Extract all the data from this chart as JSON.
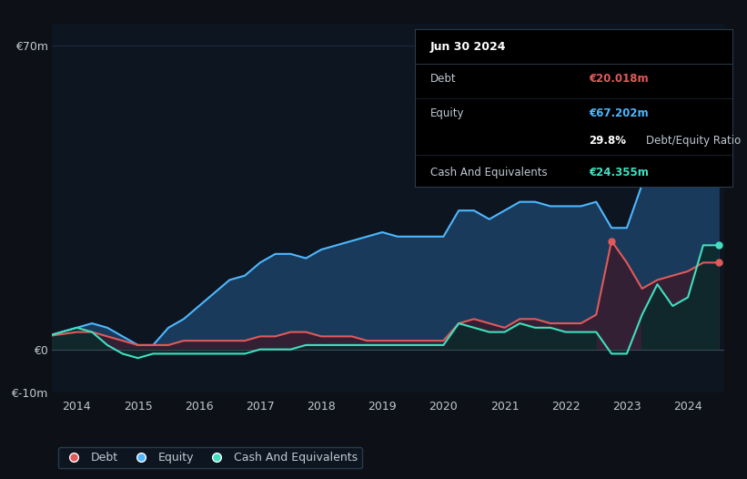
{
  "background_color": "#0d1117",
  "plot_bg_color": "#0d1520",
  "grid_color": "#1e2d40",
  "text_color": "#c0c8d0",
  "title_color": "#ffffff",
  "ylim": [
    -10,
    75
  ],
  "debt_color": "#e05a5a",
  "equity_color": "#4db8ff",
  "cash_color": "#40e0c0",
  "equity_fill_color": "#1a3a5c",
  "debt_fill_color": "#3a1a2a",
  "legend_bg": "#0d1520",
  "legend_border": "#2a3a4a",
  "tooltip_bg": "#000000",
  "tooltip_border": "#2a3a4a",
  "tooltip_title": "Jun 30 2024",
  "tooltip_debt_label": "Debt",
  "tooltip_debt_value": "€20.018m",
  "tooltip_equity_label": "Equity",
  "tooltip_equity_value": "€67.202m",
  "tooltip_ratio_pct": "29.8%",
  "tooltip_ratio_label": "Debt/Equity Ratio",
  "tooltip_cash_label": "Cash And Equivalents",
  "tooltip_cash_value": "€24.355m",
  "xtick_labels": [
    "2014",
    "2015",
    "2016",
    "2017",
    "2018",
    "2019",
    "2020",
    "2021",
    "2022",
    "2023",
    "2024"
  ],
  "years": [
    2013.5,
    2014.0,
    2014.25,
    2014.5,
    2014.75,
    2015.0,
    2015.25,
    2015.5,
    2015.75,
    2016.0,
    2016.25,
    2016.5,
    2016.75,
    2017.0,
    2017.25,
    2017.5,
    2017.75,
    2018.0,
    2018.25,
    2018.5,
    2018.75,
    2019.0,
    2019.25,
    2019.5,
    2019.75,
    2020.0,
    2020.25,
    2020.5,
    2020.75,
    2021.0,
    2021.25,
    2021.5,
    2021.75,
    2022.0,
    2022.25,
    2022.5,
    2022.75,
    2023.0,
    2023.25,
    2023.5,
    2023.75,
    2024.0,
    2024.25,
    2024.5
  ],
  "equity": [
    3,
    5,
    6,
    5,
    3,
    1,
    1,
    5,
    7,
    10,
    13,
    16,
    17,
    20,
    22,
    22,
    21,
    23,
    24,
    25,
    26,
    27,
    26,
    26,
    26,
    26,
    32,
    32,
    30,
    32,
    34,
    34,
    33,
    33,
    33,
    34,
    28,
    28,
    38,
    40,
    42,
    50,
    67,
    67
  ],
  "debt": [
    3,
    4,
    4,
    3,
    2,
    1,
    1,
    1,
    2,
    2,
    2,
    2,
    2,
    3,
    3,
    4,
    4,
    3,
    3,
    3,
    2,
    2,
    2,
    2,
    2,
    2,
    6,
    7,
    6,
    5,
    7,
    7,
    6,
    6,
    6,
    8,
    25,
    20,
    14,
    16,
    17,
    18,
    20,
    20
  ],
  "cash": [
    3,
    5,
    4,
    1,
    -1,
    -2,
    -1,
    -1,
    -1,
    -1,
    -1,
    -1,
    -1,
    0,
    0,
    0,
    1,
    1,
    1,
    1,
    1,
    1,
    1,
    1,
    1,
    1,
    6,
    5,
    4,
    4,
    6,
    5,
    5,
    4,
    4,
    4,
    -1,
    -1,
    8,
    15,
    10,
    12,
    24,
    24
  ]
}
